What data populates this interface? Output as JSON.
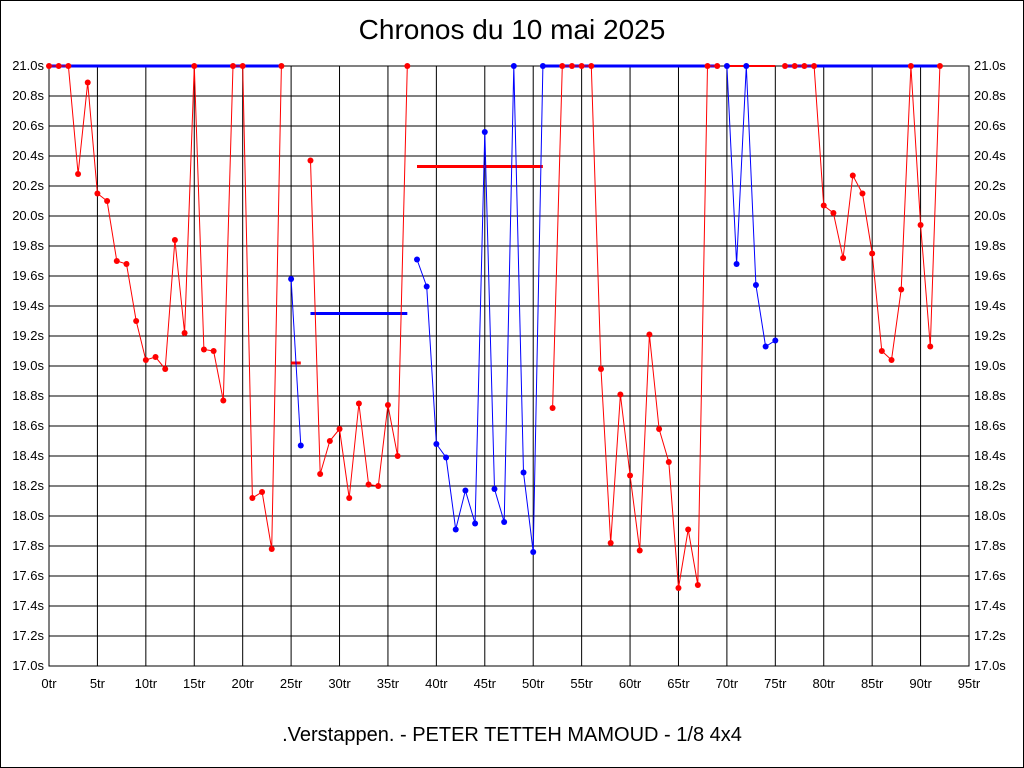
{
  "chart_data": {
    "type": "line",
    "title": "Chronos du 10 mai 2025",
    "subtitle": ".Verstappen. - PETER TETTEH MAMOUD - 1/8 4x4",
    "ylim": [
      17.0,
      21.0
    ],
    "xlim": [
      0,
      95
    ],
    "y_ticks": [
      "17.0s",
      "17.2s",
      "17.4s",
      "17.6s",
      "17.8s",
      "18.0s",
      "18.2s",
      "18.4s",
      "18.6s",
      "18.8s",
      "19.0s",
      "19.2s",
      "19.4s",
      "19.6s",
      "19.8s",
      "20.0s",
      "20.2s",
      "20.4s",
      "20.6s",
      "20.8s",
      "21.0s"
    ],
    "x_ticks": [
      "0tr",
      "5tr",
      "10tr",
      "15tr",
      "20tr",
      "25tr",
      "30tr",
      "35tr",
      "40tr",
      "45tr",
      "50tr",
      "55tr",
      "60tr",
      "65tr",
      "70tr",
      "75tr",
      "80tr",
      "85tr",
      "90tr",
      "95tr"
    ],
    "grid": true,
    "colors": {
      "red": "#ff0000",
      "blue": "#0000ff"
    },
    "series": [
      {
        "color": "red",
        "markers": true,
        "x": [
          0,
          1,
          2,
          3,
          4,
          5,
          6,
          7,
          8,
          9,
          10,
          11,
          12,
          13,
          14,
          15,
          16,
          17,
          18,
          19,
          20,
          21,
          22,
          23,
          24
        ],
        "y": [
          21.0,
          21.0,
          21.0,
          20.28,
          20.89,
          20.15,
          20.1,
          19.7,
          19.68,
          19.3,
          19.04,
          19.06,
          18.98,
          19.84,
          19.22,
          21.0,
          19.11,
          19.1,
          18.77,
          21.0,
          21.0,
          18.12,
          18.16,
          17.78,
          21.0
        ]
      },
      {
        "color": "blue",
        "markers": true,
        "x": [
          25,
          26
        ],
        "y": [
          19.58,
          18.47
        ]
      },
      {
        "color": "red",
        "markers": true,
        "x": [
          27,
          28,
          29,
          30,
          31,
          32,
          33,
          34,
          35,
          36,
          37
        ],
        "y": [
          20.37,
          18.28,
          18.5,
          18.58,
          18.12,
          18.75,
          18.21,
          18.2,
          18.74,
          18.4,
          21.0
        ]
      },
      {
        "color": "blue",
        "markers": true,
        "x": [
          38,
          39,
          40,
          41,
          42,
          43,
          44,
          45,
          46,
          47,
          48,
          49,
          50,
          51
        ],
        "y": [
          19.71,
          19.53,
          18.48,
          18.39,
          17.91,
          18.17,
          17.95,
          20.56,
          18.18,
          17.96,
          21.0,
          18.29,
          17.76,
          21.0
        ]
      },
      {
        "color": "red",
        "markers": true,
        "x": [
          52,
          53,
          54,
          55,
          56,
          57,
          58,
          59,
          60,
          61,
          62,
          63,
          64,
          65,
          66,
          67,
          68,
          69
        ],
        "y": [
          18.72,
          21.0,
          21.0,
          21.0,
          21.0,
          18.98,
          17.82,
          18.81,
          18.27,
          17.77,
          19.21,
          18.58,
          18.36,
          17.52,
          17.91,
          17.54,
          21.0,
          21.0
        ]
      },
      {
        "color": "blue",
        "markers": true,
        "x": [
          70,
          71,
          72,
          73,
          74,
          75
        ],
        "y": [
          21.0,
          19.68,
          21.0,
          19.54,
          19.13,
          19.17
        ]
      },
      {
        "color": "red",
        "markers": true,
        "x": [
          76,
          77,
          78,
          79,
          80,
          81,
          82,
          83,
          84,
          85,
          86,
          87,
          88,
          89,
          90,
          91,
          92
        ],
        "y": [
          21.0,
          21.0,
          21.0,
          21.0,
          20.07,
          20.02,
          19.72,
          20.27,
          20.15,
          19.75,
          19.1,
          19.04,
          19.51,
          21.0,
          19.94,
          19.13,
          21.0
        ]
      }
    ],
    "segments": [
      {
        "color": "blue",
        "x1": 0,
        "x2": 24,
        "y": 21.0,
        "width": 3
      },
      {
        "color": "blue",
        "x1": 51,
        "x2": 69,
        "y": 21.0,
        "width": 3
      },
      {
        "color": "red",
        "x1": 70,
        "x2": 75,
        "y": 21.0,
        "width": 2
      },
      {
        "color": "blue",
        "x1": 76,
        "x2": 92,
        "y": 21.0,
        "width": 3
      },
      {
        "color": "blue",
        "x1": 27,
        "x2": 37,
        "y": 19.35,
        "width": 3
      },
      {
        "color": "red",
        "x1": 38,
        "x2": 51,
        "y": 20.33,
        "width": 3
      },
      {
        "color": "red",
        "x1": 25,
        "x2": 26,
        "y": 19.02,
        "width": 3
      }
    ]
  }
}
